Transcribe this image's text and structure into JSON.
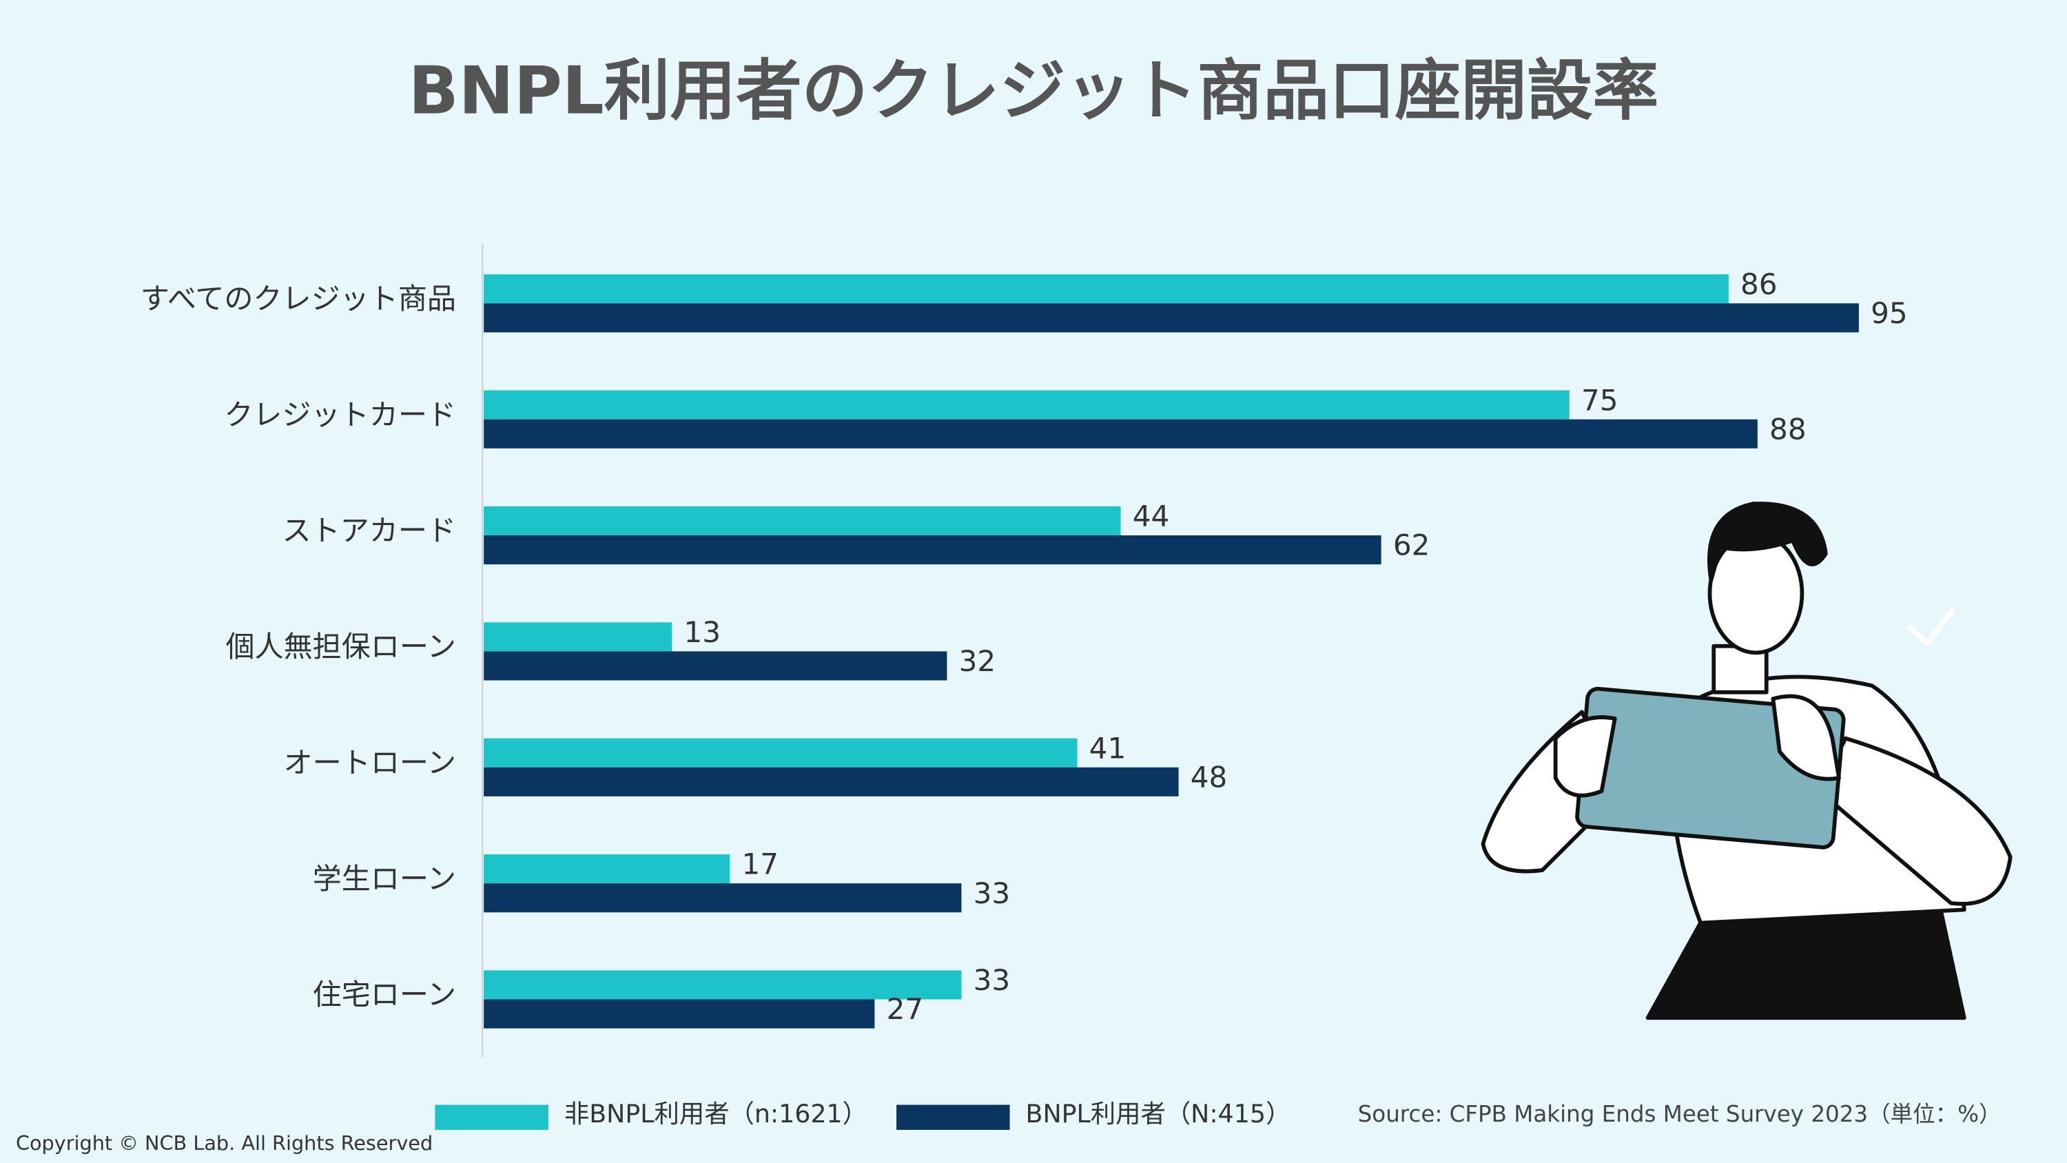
{
  "chart_data": {
    "type": "hbar",
    "title": "BNPL利用者のクレジット商品口座開設率",
    "categories": [
      "すべてのクレジット商品",
      "クレジットカード",
      "ストアカード",
      "個人無担保ローン",
      "オートローン",
      "学生ローン",
      "住宅ローン"
    ],
    "series": [
      {
        "name": "非BNPL利用者（n:1621）",
        "color": "#1cc4c9",
        "values": [
          86,
          75,
          44,
          13,
          41,
          17,
          33
        ]
      },
      {
        "name": "BNPL利用者（N:415）",
        "color": "#0a3560",
        "values": [
          95,
          88,
          62,
          32,
          48,
          33,
          27
        ]
      }
    ],
    "xlim": [
      0,
      100
    ],
    "source": "Source: CFPB Making Ends Meet Survey 2023（単位：%）",
    "copyright": "Copyright © NCB Lab. All Rights Reserved"
  }
}
